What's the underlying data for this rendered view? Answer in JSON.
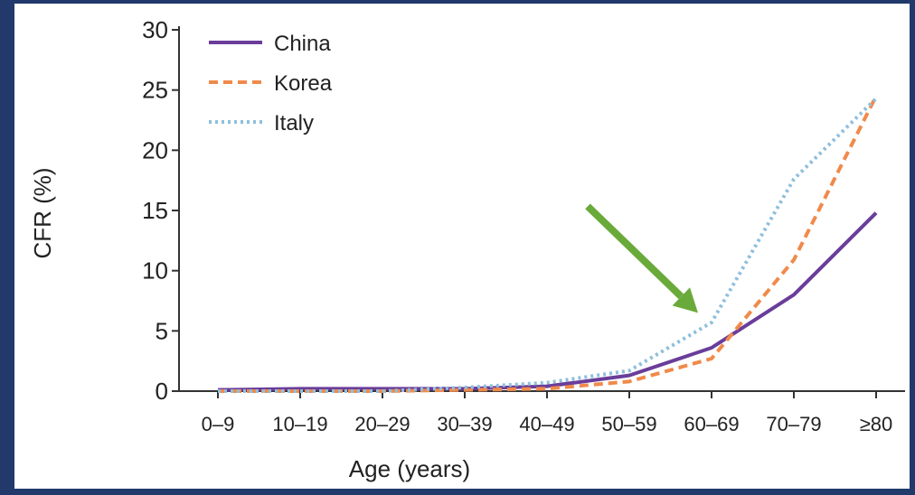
{
  "chart_data": {
    "type": "line",
    "title": "",
    "xlabel": "Age (years)",
    "ylabel": "CFR (%)",
    "categories": [
      "0–9",
      "10–19",
      "20–29",
      "30–39",
      "40–49",
      "50–59",
      "60–69",
      "70–79",
      "≥80"
    ],
    "ylim": [
      0,
      30
    ],
    "yticks": [
      0,
      5,
      10,
      15,
      20,
      25,
      30
    ],
    "grid": false,
    "legend_position": "top-left",
    "series": [
      {
        "name": "China",
        "values": [
          0.1,
          0.2,
          0.2,
          0.2,
          0.4,
          1.3,
          3.6,
          8.0,
          14.8
        ],
        "color": "#6a3d9a",
        "style": "solid"
      },
      {
        "name": "Korea",
        "values": [
          0.0,
          0.0,
          0.0,
          0.1,
          0.2,
          0.8,
          2.7,
          10.9,
          24.5
        ],
        "color": "#f08a4b",
        "style": "dashed"
      },
      {
        "name": "Italy",
        "values": [
          0.0,
          0.0,
          0.0,
          0.3,
          0.7,
          1.7,
          5.7,
          17.6,
          24.3
        ],
        "color": "#8fbfdc",
        "style": "dotted"
      }
    ],
    "annotations": [
      {
        "type": "arrow",
        "color": "#6aaa3a",
        "points_to": {
          "category": "60–69",
          "y": 6.5
        }
      }
    ]
  }
}
